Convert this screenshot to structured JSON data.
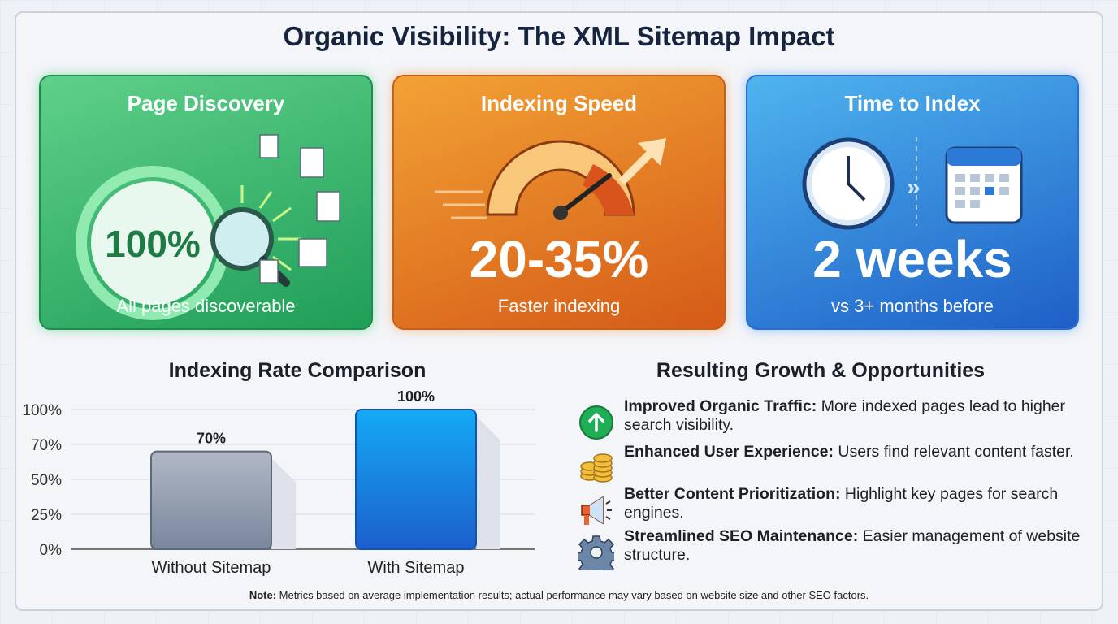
{
  "title": "Organic Visibility: The XML Sitemap Impact",
  "cards": [
    {
      "title": "Page Discovery",
      "value": "100%",
      "caption": "All pages discoverable",
      "icon": "magnifier-documents-icon",
      "color": "#2fb46a"
    },
    {
      "title": "Indexing Speed",
      "value": "20-35%",
      "caption": "Faster indexing",
      "icon": "speedometer-icon",
      "color": "#e57d25"
    },
    {
      "title": "Time to Index",
      "value": "2 weeks",
      "caption": "vs 3+ months before",
      "icon": "clock-calendar-icon",
      "color": "#2f80d8"
    }
  ],
  "chart_data": {
    "type": "bar",
    "title": "Indexing Rate Comparison",
    "categories": [
      "Without Sitemap",
      "With Sitemap"
    ],
    "values": [
      70,
      100
    ],
    "data_labels": [
      "70%",
      "100%"
    ],
    "y_ticks": [
      "0%",
      "25%",
      "50%",
      "70%",
      "100%"
    ],
    "ylim": [
      0,
      100
    ],
    "grid": true,
    "colors": [
      "#8a97ab",
      "#1e88e5"
    ]
  },
  "growth": {
    "title": "Resulting Growth & Opportunities",
    "items": [
      {
        "bold": "Improved Organic Traffic:",
        "text": " More indexed pages lead to higher search visibility.",
        "icon": "arrow-up-circle-icon"
      },
      {
        "bold": "Enhanced User Experience:",
        "text": " Users find relevant content faster.",
        "icon": "coins-icon"
      },
      {
        "bold": "Better Content Prioritization:",
        "text": " Highlight key pages for search engines.",
        "icon": "megaphone-icon"
      },
      {
        "bold": "Streamlined SEO Maintenance:",
        "text": " Easier management of website structure.",
        "icon": "gear-icon"
      }
    ]
  },
  "note": {
    "bold": "Note:",
    "text": " Metrics based on average implementation results; actual performance may vary based on website size and other SEO factors."
  }
}
